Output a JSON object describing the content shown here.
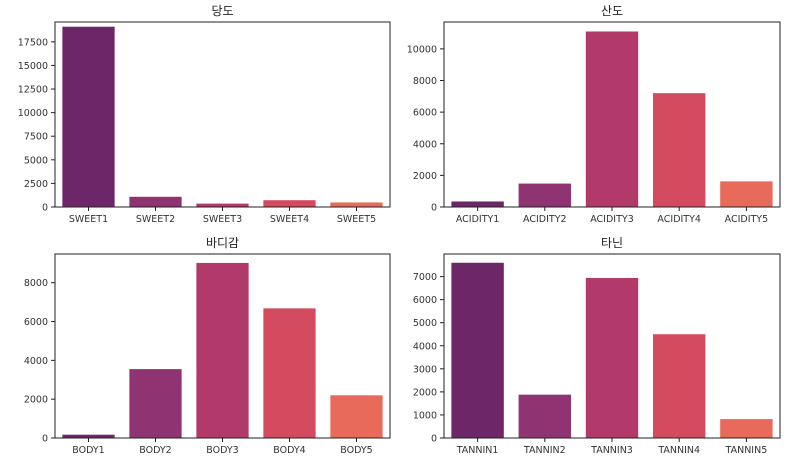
{
  "chart_data": [
    {
      "type": "bar",
      "title": "당도",
      "categories": [
        "SWEET1",
        "SWEET2",
        "SWEET3",
        "SWEET4",
        "SWEET5"
      ],
      "values": [
        19100,
        1080,
        360,
        720,
        480
      ],
      "ylim": [
        0,
        19600
      ],
      "yticks": [
        0,
        2500,
        5000,
        7500,
        10000,
        12500,
        15000,
        17500
      ],
      "colors": [
        "#6d2768",
        "#8f3372",
        "#b23a6b",
        "#d44a5e",
        "#e86a5a"
      ]
    },
    {
      "type": "bar",
      "title": "산도",
      "categories": [
        "ACIDITY1",
        "ACIDITY2",
        "ACIDITY3",
        "ACIDITY4",
        "ACIDITY5"
      ],
      "values": [
        350,
        1480,
        11100,
        7200,
        1620
      ],
      "ylim": [
        0,
        11700
      ],
      "yticks": [
        0,
        2000,
        4000,
        6000,
        8000,
        10000
      ],
      "colors": [
        "#6d2768",
        "#8f3372",
        "#b23a6b",
        "#d44a5e",
        "#e86a5a"
      ]
    },
    {
      "type": "bar",
      "title": "바디감",
      "categories": [
        "BODY1",
        "BODY2",
        "BODY3",
        "BODY4",
        "BODY5"
      ],
      "values": [
        170,
        3550,
        9020,
        6680,
        2200
      ],
      "ylim": [
        0,
        9480
      ],
      "yticks": [
        0,
        2000,
        4000,
        6000,
        8000
      ],
      "colors": [
        "#6d2768",
        "#8f3372",
        "#b23a6b",
        "#d44a5e",
        "#e86a5a"
      ]
    },
    {
      "type": "bar",
      "title": "타닌",
      "categories": [
        "TANNIN1",
        "TANNIN2",
        "TANNIN3",
        "TANNIN4",
        "TANNIN5"
      ],
      "values": [
        7600,
        1880,
        6940,
        4500,
        820
      ],
      "ylim": [
        0,
        7980
      ],
      "yticks": [
        0,
        1000,
        2000,
        3000,
        4000,
        5000,
        6000,
        7000
      ],
      "colors": [
        "#6d2768",
        "#8f3372",
        "#b23a6b",
        "#d44a5e",
        "#e86a5a"
      ]
    }
  ]
}
